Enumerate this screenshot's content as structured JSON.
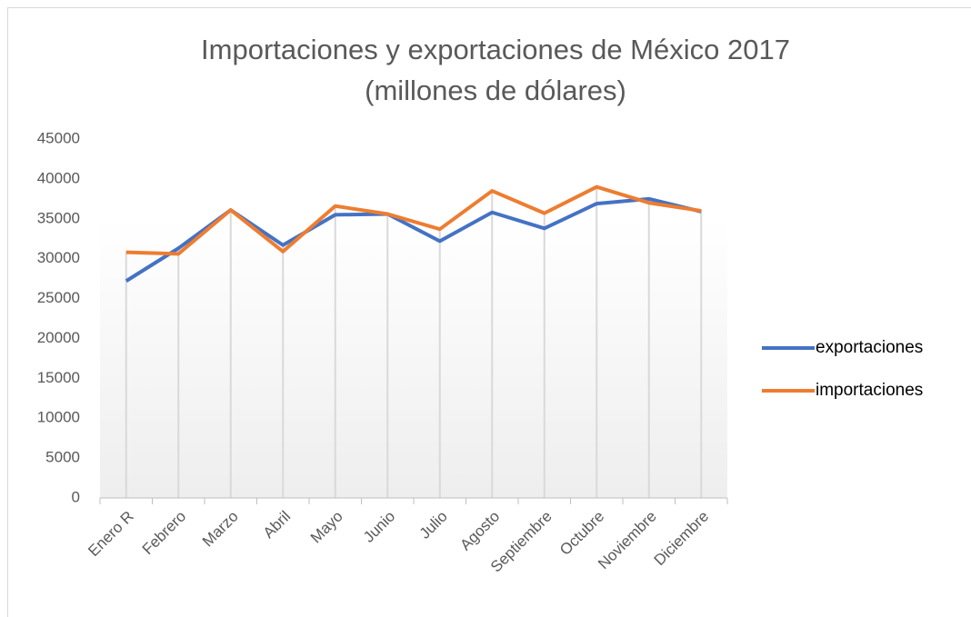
{
  "chart_data": {
    "type": "line",
    "title": [
      "Importaciones y exportaciones de México 2017",
      "(millones de dólares)"
    ],
    "categories": [
      "Enero R",
      "Febrero",
      "Marzo",
      "Abril",
      "Mayo",
      "Junio",
      "Julio",
      "Agosto",
      "Septiembre",
      "Octubre",
      "Noviembre",
      "Diciembre"
    ],
    "series": [
      {
        "name": "exportaciones",
        "color": "#4472c4",
        "values": [
          27200,
          31300,
          36100,
          31700,
          35500,
          35600,
          32200,
          35800,
          33800,
          36900,
          37500,
          35900
        ]
      },
      {
        "name": "importaciones",
        "color": "#ed7d31",
        "values": [
          30800,
          30600,
          36100,
          30900,
          36600,
          35600,
          33700,
          38500,
          35700,
          39000,
          37000,
          36000
        ]
      }
    ],
    "ylim": [
      0,
      45000
    ],
    "yticks": [
      0,
      5000,
      10000,
      15000,
      20000,
      25000,
      30000,
      35000,
      40000,
      45000
    ],
    "legend": "right"
  }
}
